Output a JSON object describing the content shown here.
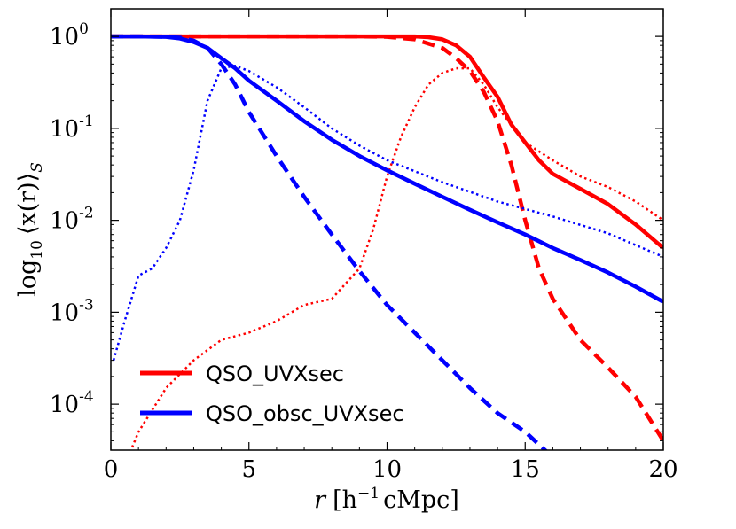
{
  "chart_data": {
    "type": "line",
    "xlabel_var": "r",
    "xlabel_units": "[h",
    "xlabel_exp": "−1",
    "xlabel_units_tail": "cMpc]",
    "ylabel_prefix": "log",
    "ylabel_sub": "10",
    "ylabel_body": "⟨x(r)⟩",
    "ylabel_tail_sub": "S",
    "xlim": [
      0,
      20
    ],
    "ylim_log10": [
      -4.5,
      0.3
    ],
    "xticks": [
      0,
      5,
      10,
      15,
      20
    ],
    "xtick_labels": [
      "0",
      "5",
      "10",
      "15",
      "20"
    ],
    "yticks_log10": [
      0,
      -1,
      -2,
      -3,
      -4
    ],
    "ytick_base": [
      "10",
      "10",
      "10",
      "10",
      "10"
    ],
    "ytick_exp": [
      "0",
      "-1",
      "-2",
      "-3",
      "-4"
    ],
    "legend": [
      {
        "label": "QSO_UVXsec",
        "color": "#ff0000"
      },
      {
        "label": "QSO_obsc_UVXsec",
        "color": "#0000ff"
      }
    ],
    "series": [
      {
        "name": "QSO_UVXsec solid",
        "color": "#ff0000",
        "style": "solid",
        "x": [
          0,
          2,
          5,
          8,
          10,
          11,
          11.5,
          12,
          12.5,
          13,
          13.5,
          14,
          14.5,
          15,
          15.5,
          16,
          17,
          18,
          19,
          20
        ],
        "y": [
          1,
          1,
          1,
          1,
          1,
          1,
          0.98,
          0.93,
          0.8,
          0.6,
          0.36,
          0.22,
          0.11,
          0.07,
          0.045,
          0.032,
          0.022,
          0.015,
          0.009,
          0.005
        ]
      },
      {
        "name": "QSO_UVXsec dashed",
        "color": "#ff0000",
        "style": "dashed",
        "x": [
          0,
          5,
          9,
          10,
          11,
          12,
          12.5,
          13,
          13.5,
          14,
          14.5,
          15,
          15.5,
          16,
          17,
          18,
          19,
          20
        ],
        "y": [
          1,
          1,
          1,
          0.99,
          0.93,
          0.75,
          0.58,
          0.42,
          0.25,
          0.12,
          0.04,
          0.01,
          0.003,
          0.0014,
          0.0005,
          0.00025,
          0.00012,
          4e-05
        ]
      },
      {
        "name": "QSO_UVXsec dotted",
        "color": "#ff0000",
        "style": "dotted",
        "x": [
          0.7,
          1,
          2,
          3,
          4,
          5,
          6,
          7,
          8,
          9,
          9.5,
          10,
          10.5,
          11,
          11.5,
          12,
          12.5,
          13,
          13.5,
          14,
          15,
          16,
          17,
          18,
          19,
          20
        ],
        "y": [
          3e-05,
          5e-05,
          0.00015,
          0.0003,
          0.0005,
          0.0006,
          0.0008,
          0.0012,
          0.0014,
          0.003,
          0.008,
          0.03,
          0.08,
          0.17,
          0.3,
          0.4,
          0.45,
          0.45,
          0.3,
          0.17,
          0.07,
          0.045,
          0.03,
          0.023,
          0.016,
          0.01
        ]
      },
      {
        "name": "QSO_obsc_UVXsec solid",
        "color": "#0000ff",
        "style": "solid",
        "x": [
          0,
          1,
          2,
          2.5,
          3,
          3.5,
          4,
          4.5,
          5,
          6,
          7,
          8,
          9,
          10,
          11,
          12,
          13,
          14,
          15,
          16,
          17,
          18,
          19,
          20
        ],
        "y": [
          1,
          1,
          0.99,
          0.95,
          0.87,
          0.75,
          0.58,
          0.45,
          0.33,
          0.2,
          0.12,
          0.075,
          0.05,
          0.035,
          0.025,
          0.018,
          0.013,
          0.0095,
          0.007,
          0.005,
          0.0037,
          0.0027,
          0.0019,
          0.0013
        ]
      },
      {
        "name": "QSO_obsc_UVXsec dashed",
        "color": "#0000ff",
        "style": "dashed",
        "x": [
          0,
          1,
          2,
          2.5,
          3,
          3.5,
          4,
          4.5,
          5,
          6,
          7,
          8,
          9,
          10,
          11,
          12,
          13,
          14,
          15,
          15.8
        ],
        "y": [
          1,
          1,
          0.99,
          0.97,
          0.9,
          0.75,
          0.5,
          0.3,
          0.15,
          0.05,
          0.018,
          0.007,
          0.0028,
          0.0012,
          0.0006,
          0.0003,
          0.00015,
          8e-05,
          5e-05,
          3e-05
        ]
      },
      {
        "name": "QSO_obsc_UVXsec dotted",
        "color": "#0000ff",
        "style": "dotted",
        "x": [
          0.1,
          0.5,
          1,
          1.5,
          2,
          2.5,
          3,
          3.5,
          4,
          4.5,
          5,
          6,
          7,
          8,
          9,
          10,
          12,
          14,
          16,
          18,
          20
        ],
        "y": [
          0.0003,
          0.0008,
          0.0025,
          0.003,
          0.005,
          0.01,
          0.035,
          0.2,
          0.45,
          0.48,
          0.42,
          0.28,
          0.17,
          0.1,
          0.065,
          0.045,
          0.026,
          0.016,
          0.011,
          0.0072,
          0.004
        ]
      }
    ]
  }
}
